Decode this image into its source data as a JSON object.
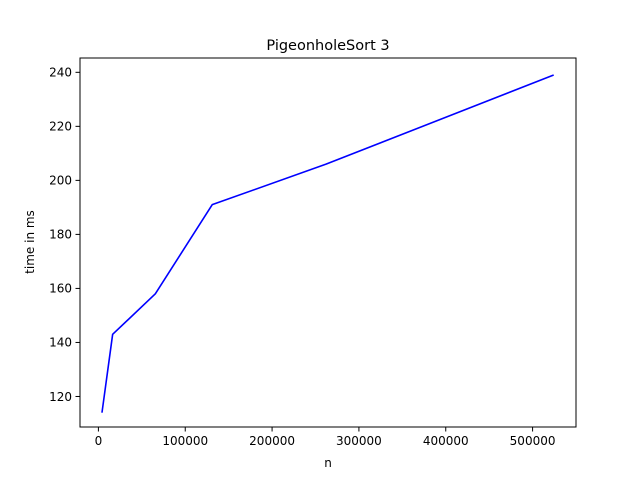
{
  "chart_data": {
    "type": "line",
    "title": "PigeonholeSort 3",
    "xlabel": "n",
    "ylabel": "time in ms",
    "xlim": [
      -21200,
      550000
    ],
    "ylim": [
      108.7,
      245.3
    ],
    "x_ticks": [
      0,
      100000,
      200000,
      300000,
      400000,
      500000
    ],
    "x_tick_labels": [
      "0",
      "100000",
      "200000",
      "300000",
      "400000",
      "500000"
    ],
    "y_ticks": [
      120,
      140,
      160,
      180,
      200,
      220,
      240
    ],
    "y_tick_labels": [
      "120",
      "140",
      "160",
      "180",
      "200",
      "220",
      "240"
    ],
    "grid": false,
    "series": [
      {
        "color": "#0000ff",
        "x": [
          4096,
          16384,
          65536,
          131072,
          262144,
          524288
        ],
        "y": [
          114,
          143,
          158,
          191,
          206,
          239
        ]
      }
    ]
  }
}
